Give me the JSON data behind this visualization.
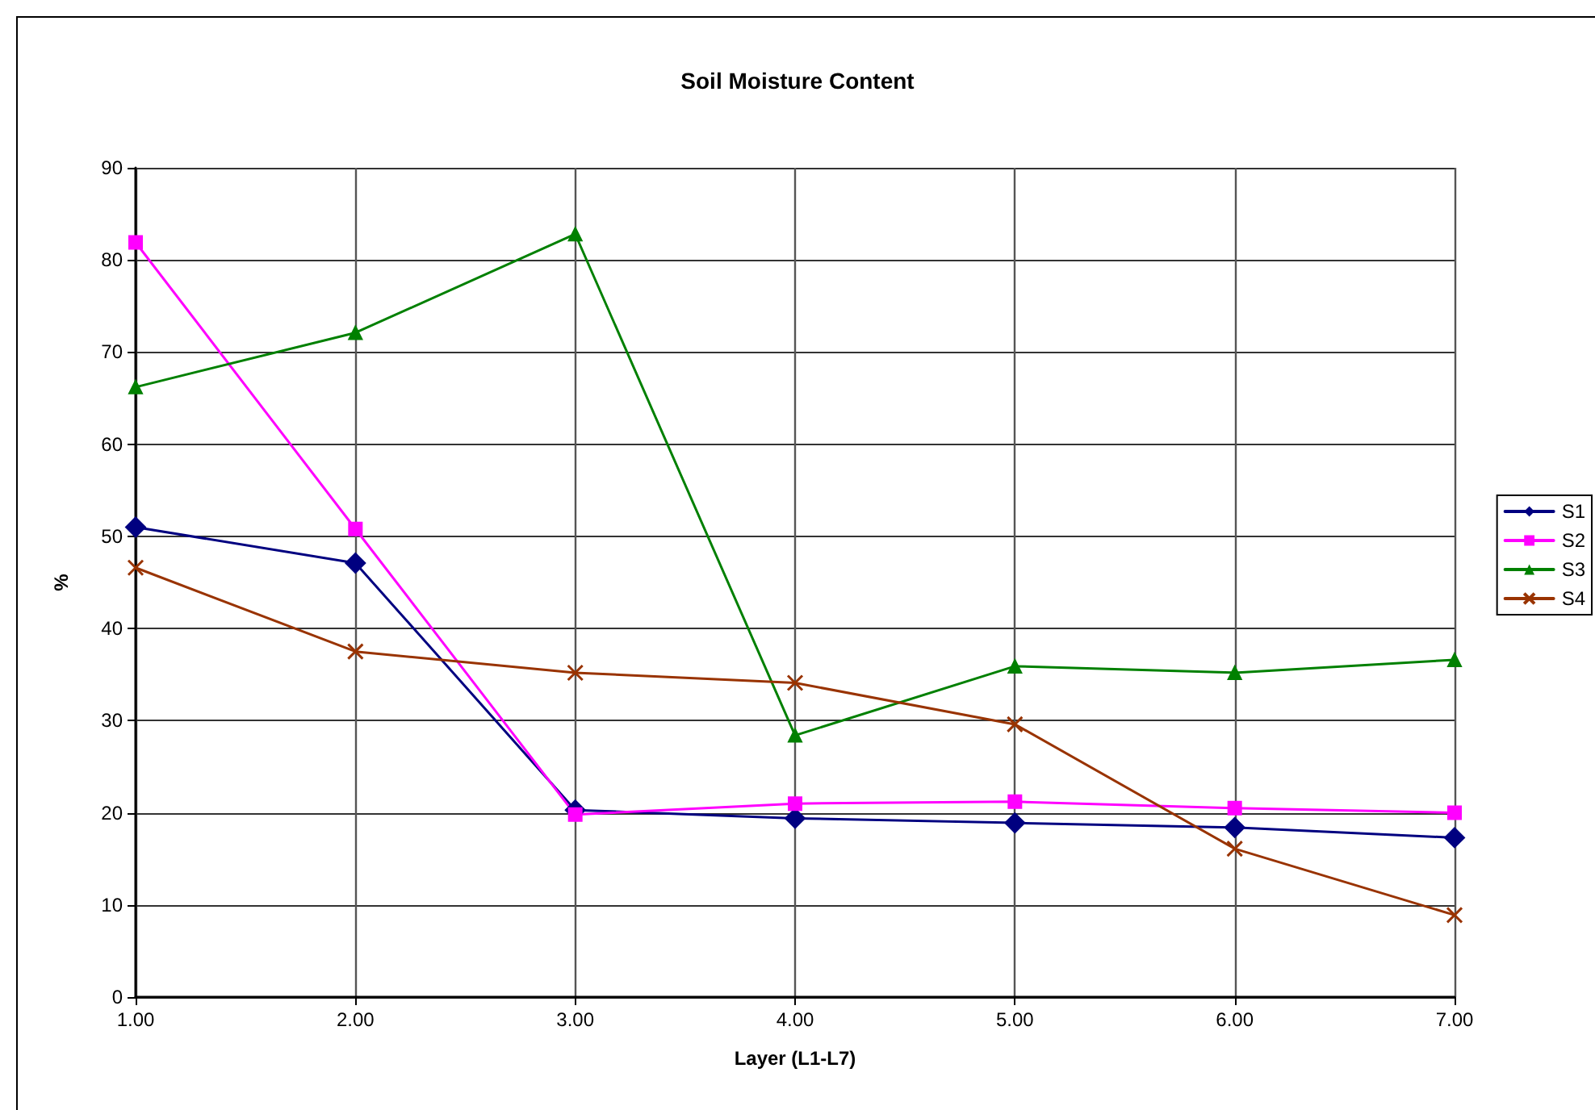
{
  "chart_data": {
    "type": "line",
    "title": "Soil Moisture Content",
    "xlabel": "Layer (L1-L7)",
    "ylabel": "%",
    "x": [
      1,
      2,
      3,
      4,
      5,
      6,
      7
    ],
    "series": [
      {
        "name": "S1",
        "color": "#000080",
        "marker": "diamond",
        "values": [
          51,
          47.1,
          20.3,
          19.4,
          18.9,
          18.4,
          17.3
        ]
      },
      {
        "name": "S2",
        "color": "#ff00ff",
        "marker": "square",
        "values": [
          81.9,
          50.8,
          19.8,
          21.0,
          21.2,
          20.5,
          20.0
        ]
      },
      {
        "name": "S3",
        "color": "#008000",
        "marker": "triangle",
        "values": [
          66.2,
          72.1,
          82.8,
          28.4,
          35.9,
          35.2,
          36.6
        ]
      },
      {
        "name": "S4",
        "color": "#993300",
        "marker": "cross",
        "values": [
          46.6,
          37.5,
          35.2,
          34.1,
          29.6,
          16.1,
          8.9
        ]
      }
    ],
    "xlim": [
      1,
      7
    ],
    "xticks": [
      {
        "value": 1,
        "label": "1.00"
      },
      {
        "value": 2,
        "label": "2.00"
      },
      {
        "value": 3,
        "label": "3.00"
      },
      {
        "value": 4,
        "label": "4.00"
      },
      {
        "value": 5,
        "label": "5.00"
      },
      {
        "value": 6,
        "label": "6.00"
      },
      {
        "value": 7,
        "label": "7.00"
      }
    ],
    "ylim": [
      0,
      90
    ],
    "yticks": [
      0,
      10,
      20,
      30,
      40,
      50,
      60,
      70,
      80,
      90
    ],
    "grid": true,
    "legend": "right",
    "line_style": "solid"
  }
}
